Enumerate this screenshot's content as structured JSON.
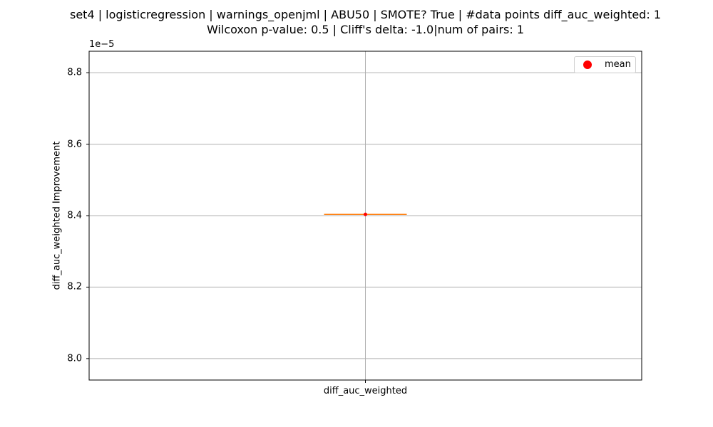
{
  "chart_data": {
    "type": "box",
    "title_line1": "set4 | logisticregression | warnings_openjml | ABU50 | SMOTE? True | #data points diff_auc_weighted: 1",
    "title_line2": "Wilcoxon p-value: 0.5 | Cliff's delta: -1.0|num of pairs: 1",
    "xlabel": "",
    "ylabel": "diff_auc_weighted Improvement",
    "categories": [
      "diff_auc_weighted"
    ],
    "offset_text": "1e−5",
    "ylim": [
      7.94,
      8.86
    ],
    "yticks": [
      8.0,
      8.2,
      8.4,
      8.6,
      8.8
    ],
    "ytick_labels": [
      "8.0",
      "8.2",
      "8.4",
      "8.6",
      "8.8"
    ],
    "grid": true,
    "legend_position": "top-right",
    "legend": [
      "mean"
    ],
    "series": [
      {
        "values": [
          8.4035
        ],
        "mean": 8.4035,
        "median": 8.4035
      }
    ],
    "colors": {
      "box": "#000000",
      "median": "#ff7f0e",
      "mean": "#ff0000",
      "grid": "#b0b0b0"
    }
  }
}
